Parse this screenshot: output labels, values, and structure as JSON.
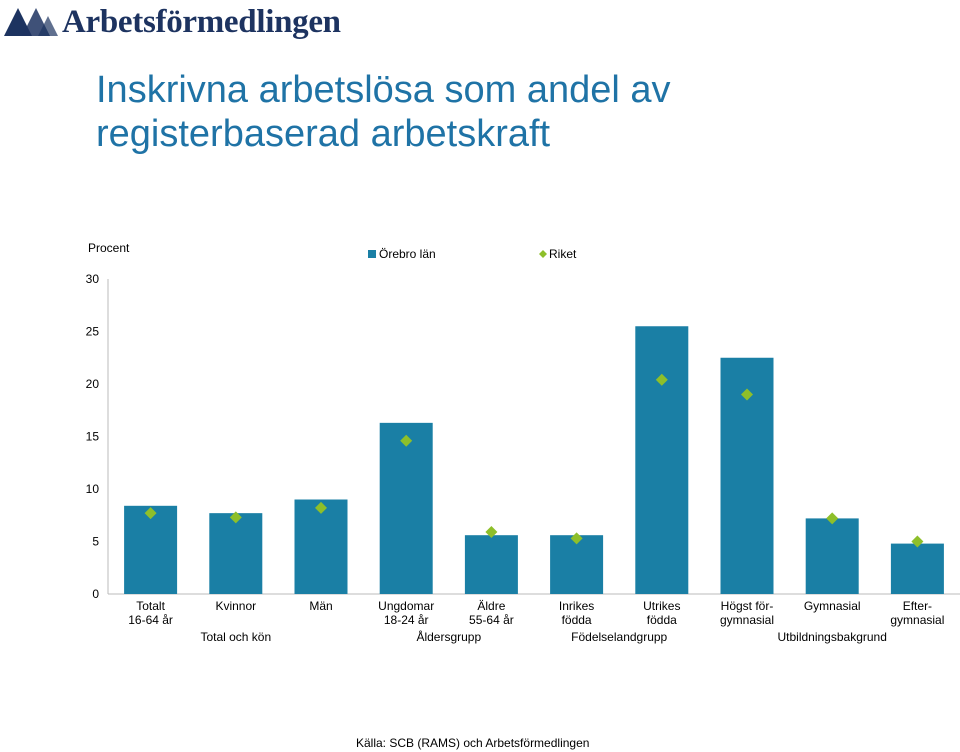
{
  "header": {
    "logo_text": "Arbetsförmedlingen",
    "logo_icon": "arbetsformedlingen-logo-icon",
    "title_line1": "Inskrivna arbetslösa som andel av",
    "title_line2": "registerbaserad arbetskraft"
  },
  "source": "Källa: SCB (RAMS) och Arbetsförmedlingen",
  "colors": {
    "bar": "#1a7fa5",
    "marker": "#8ebf2a",
    "title": "#1f73a6",
    "logo": "#1d3360"
  },
  "chart_data": {
    "type": "bar",
    "ylabel": "Procent",
    "ylim": [
      0,
      30
    ],
    "yticks": [
      0,
      5,
      10,
      15,
      20,
      25,
      30
    ],
    "grid": false,
    "legend_position": "top",
    "categories": [
      [
        "Totalt",
        "16-64 år"
      ],
      [
        "Kvinnor"
      ],
      [
        "Män"
      ],
      [
        "Ungdomar",
        "18-24 år"
      ],
      [
        "Äldre",
        "55-64 år"
      ],
      [
        "Inrikes",
        "födda"
      ],
      [
        "Utrikes",
        "födda"
      ],
      [
        "Högst för-",
        "gymnasial"
      ],
      [
        "Gymnasial"
      ],
      [
        "Efter-",
        "gymnasial"
      ]
    ],
    "groups": [
      {
        "label": "Total och kön",
        "span": [
          0,
          2
        ]
      },
      {
        "label": "Åldersgrupp",
        "span": [
          3,
          4
        ]
      },
      {
        "label": "Födelselandgrupp",
        "span": [
          5,
          6
        ]
      },
      {
        "label": "Utbildningsbakgrund",
        "span": [
          7,
          9
        ]
      }
    ],
    "series": [
      {
        "name": "Örebro län",
        "kind": "bar",
        "values": [
          8.4,
          7.7,
          9.0,
          16.3,
          5.6,
          5.6,
          25.5,
          22.5,
          7.2,
          4.8
        ]
      },
      {
        "name": "Riket",
        "kind": "marker",
        "values": [
          7.7,
          7.3,
          8.2,
          14.6,
          5.9,
          5.3,
          20.4,
          19.0,
          7.2,
          5.0
        ]
      }
    ]
  }
}
